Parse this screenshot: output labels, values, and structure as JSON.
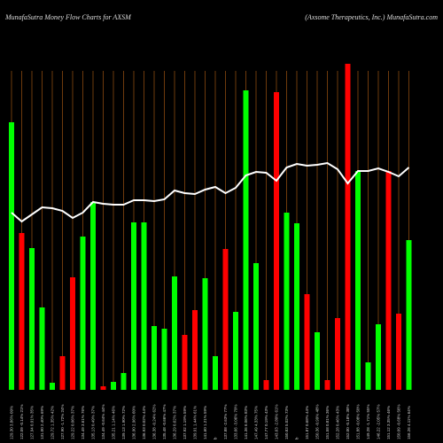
{
  "chart_data": {
    "type": "bar",
    "title": "MunafaSutra  Money Flow  Charts for AXSM",
    "subtitle": "(Axsome   Therapeutics,  Inc.) MunafaSutra.com",
    "categories": [
      "129.30 3.86% 09%",
      "122.09 -0.14% 21%",
      "127.94 0.91% 35%",
      "131.00 2.40% 69%",
      "129.72 1.35% 42%",
      "127.90 -1.72% 24%",
      "129.22 0.06% 37%",
      "134.49 3.61% 76%",
      "135.13 0.49% 37%",
      "134.49 -0.64% 44%",
      "135.21 1.14% 46%",
      "139.13 1.90% 72%",
      "136.90 2.96% 60%",
      "136.93 0.02% 44%",
      "136.38 -0.24% 62%",
      "135.48 -0.66% 47%",
      "136.29 0.62% 37%",
      "137.92 1.19% 59%",
      "139.91 1.44% 61%",
      "141.60 1.21% 59%",
      "b",
      "137.88 -2.63% 77%",
      "133.66 -3.06% 79%",
      "141.36 6.06% 83%",
      "147.49 4.33% 75%",
      "147.77 0.19% 43%",
      "143.63 -2.80% 61%",
      "150.83 5.02% 73%",
      "b",
      "151.87 0.68% 44%",
      "150.36 -0.99% 48%",
      "151.58 0.81% 36%",
      "152.28 0.46% 43%",
      "152.00 -0.18% 38%",
      "151.88 -0.08% 50%",
      "149.28 -1.71% 55%",
      "146.22 -2.05% 57%",
      "151.12 3.35% 46%",
      "150.09 -0.68% 56%",
      "156.26 4.11% 64%"
    ],
    "colors": [
      "#00ff00",
      "#ff0000",
      "#00ff00",
      "#00ff00",
      "#00ff00",
      "#ff0000",
      "#ff0000",
      "#00ff00",
      "#00ff00",
      "#ff0000",
      "#00ff00",
      "#00ff00",
      "#00ff00",
      "#00ff00",
      "#00ff00",
      "#00ff00",
      "#00ff00",
      "#ff0000",
      "#ff0000",
      "#00ff00",
      "#00ff00",
      "#ff0000",
      "#00ff00",
      "#00ff00",
      "#00ff00",
      "#ff0000",
      "#ff0000",
      "#00ff00",
      "#00ff00",
      "#ff0000",
      "#00ff00",
      "#ff0000",
      "#ff0000",
      "#ff0000",
      "#00ff00",
      "#00ff00",
      "#00ff00",
      "#ff0000",
      "#ff0000",
      "#00ff00"
    ],
    "values": [
      302,
      177,
      160,
      93,
      8,
      38,
      127,
      173,
      212,
      4,
      9,
      19,
      189,
      189,
      72,
      69,
      128,
      62,
      90,
      126,
      38,
      159,
      88,
      338,
      143,
      11,
      336,
      200,
      188,
      108,
      65,
      11,
      81,
      368,
      247,
      31,
      74,
      247,
      86,
      169
    ],
    "line": {
      "color": "#ffffff",
      "values": [
        200,
        190,
        198,
        206,
        205,
        202,
        194,
        200,
        212,
        210,
        209,
        209,
        214,
        214,
        213,
        215,
        225,
        222,
        221,
        226,
        229,
        222,
        228,
        242,
        246,
        245,
        236,
        251,
        255,
        253,
        254,
        256,
        249,
        233,
        247,
        247,
        250,
        246,
        241,
        251
      ]
    },
    "ylim": [
      0,
      370
    ],
    "grid": true,
    "grid_color": "#8a4a10"
  }
}
